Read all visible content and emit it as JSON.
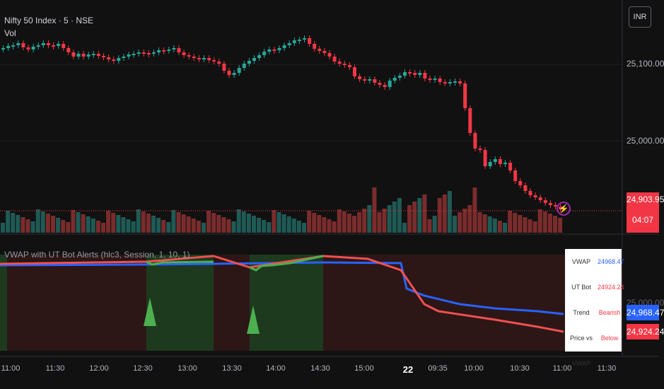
{
  "header": {
    "symbol": "Nifty 50 Index · 5 · NSE",
    "vol": "Vol",
    "indicator": "VWAP with UT Bot Alerts (hlc3, Session, 1, 10, 1)"
  },
  "currency": "INR",
  "price_axis": {
    "labels": [
      "25,100.00",
      "25,000.00"
    ],
    "current_price": "24,903.95",
    "countdown": "04:07"
  },
  "indicator_axis": {
    "label": "25,000.00",
    "vwap_tag": "24,968.47",
    "utbot_tag": "24,924.24"
  },
  "time_axis": [
    "11:00",
    "11:30",
    "12:00",
    "12:30",
    "13:00",
    "13:30",
    "14:00",
    "14:30",
    "15:00",
    "22",
    "09:35",
    "10:00",
    "10:30",
    "11:00",
    "11:30"
  ],
  "info_table": {
    "rows": [
      {
        "key": "VWAP",
        "value": "24968.47",
        "color": "#2962ff"
      },
      {
        "key": "UT Bot",
        "value": "24924.24",
        "color": "#f23645"
      },
      {
        "key": "Trend",
        "value": "Bearish",
        "color": "#f23645"
      },
      {
        "key": "Price vs VWAP",
        "value": "Below",
        "color": "#f23645"
      }
    ]
  },
  "colors": {
    "up": "#26a69a",
    "down": "#f23645",
    "vwap": "#2962ff",
    "utbot": "#f05050",
    "trend_green": "#4caf50"
  },
  "icons": {
    "alert": "lightning-icon"
  }
}
